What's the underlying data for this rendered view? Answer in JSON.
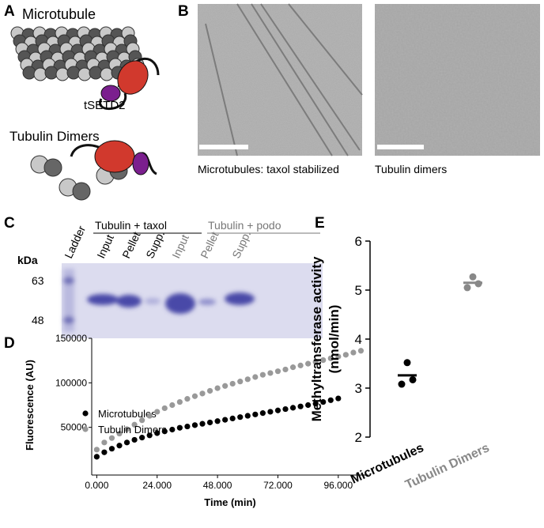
{
  "figure": {
    "panel_labels": [
      "A",
      "B",
      "C",
      "D",
      "E"
    ]
  },
  "panel_a": {
    "microtubule": "Microtubule",
    "enzyme": "tSETD2",
    "dimers": "Tubulin Dimers"
  },
  "panel_b": {
    "captions": [
      "Microtubules: taxol stabilized",
      "Tubulin dimers"
    ]
  },
  "panel_c": {
    "groups": [
      "Tubulin + taxol",
      "Tubulin + podo"
    ],
    "lanes": [
      "Ladder",
      "Input",
      "Pellet",
      "Supp.",
      "Input",
      "Pellet",
      "Supp."
    ],
    "unit": "kDa",
    "markers": [
      "63",
      "48"
    ]
  },
  "chart_data": [
    {
      "type": "scatter",
      "x_label": "Time (min)",
      "y_label": "Fluorescence (AU)",
      "x": [
        0,
        3,
        6,
        9,
        12,
        15,
        18,
        21,
        24,
        27,
        30,
        33,
        36,
        39,
        42,
        45,
        48,
        51,
        54,
        57,
        60,
        63,
        66,
        69,
        72,
        75,
        78,
        81,
        84,
        87,
        90,
        93,
        96,
        99,
        102,
        105
      ],
      "series": [
        {
          "name": "Microtubules",
          "color": "#000000",
          "values": [
            17000,
            22000,
            26000,
            29500,
            33000,
            36000,
            38500,
            41000,
            43500,
            45500,
            47500,
            49500,
            51000,
            52500,
            54000,
            55500,
            57000,
            58500,
            60000,
            61500,
            63000,
            64500,
            66000,
            67500,
            69000,
            70500,
            72000,
            73500,
            75000,
            76500,
            78500,
            80500,
            82500,
            null,
            null,
            null
          ]
        },
        {
          "name": "Tubulin Dimers",
          "color": "#999999",
          "values": [
            25000,
            33000,
            38000,
            43000,
            48000,
            53000,
            58000,
            63000,
            67500,
            71500,
            75000,
            78500,
            82000,
            85000,
            88000,
            91000,
            94000,
            96500,
            99000,
            101500,
            104000,
            106500,
            109000,
            111000,
            113000,
            115000,
            117500,
            119500,
            121500,
            123500,
            125500,
            127500,
            129500,
            131500,
            134000,
            136000
          ]
        }
      ],
      "xlim": [
        -2,
        108
      ],
      "ylim": [
        0,
        150000
      ],
      "xticks": [
        {
          "value": 0,
          "label": "0.000"
        },
        {
          "value": 24,
          "label": "24.000"
        },
        {
          "value": 48,
          "label": "48.000"
        },
        {
          "value": 72,
          "label": "72.000"
        },
        {
          "value": 96,
          "label": "96.000"
        }
      ],
      "yticks": [
        50000,
        100000,
        150000
      ],
      "legend": "upper-left"
    },
    {
      "type": "dot",
      "y_label": [
        "Methyltransferase activity",
        "(nmol/min)"
      ],
      "categories": [
        "Microtubules",
        "Tubulin Dimers"
      ],
      "colors": [
        "#000000",
        "#888888"
      ],
      "values": [
        [
          3.52,
          3.17,
          3.08
        ],
        [
          5.27,
          5.13,
          5.05
        ]
      ],
      "means": [
        3.26,
        5.15
      ],
      "ylim": [
        2,
        6
      ],
      "yticks": [
        2,
        3,
        4,
        5,
        6
      ]
    }
  ]
}
